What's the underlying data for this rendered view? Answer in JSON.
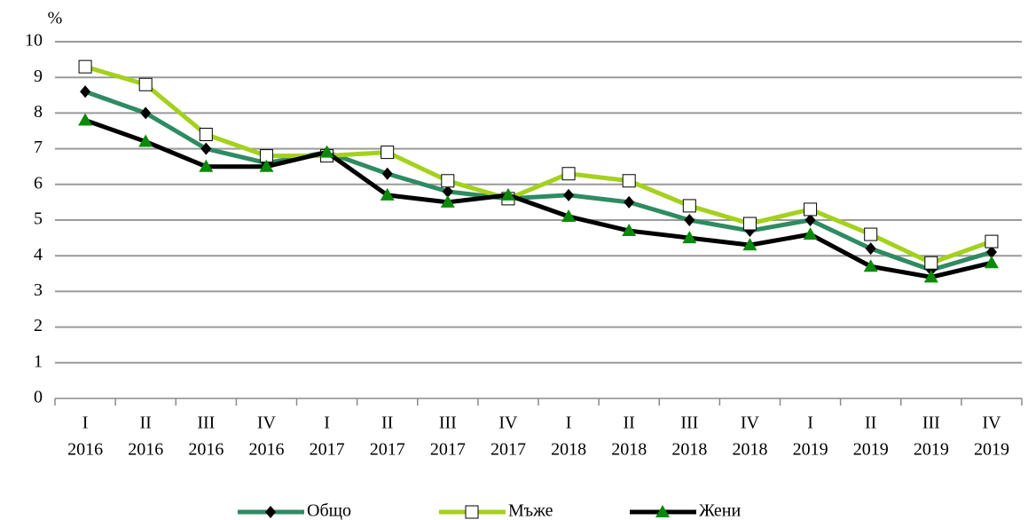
{
  "chart_data": {
    "type": "line",
    "y_label": "%",
    "categories": [
      [
        "I",
        "2016"
      ],
      [
        "II",
        "2016"
      ],
      [
        "III",
        "2016"
      ],
      [
        "IV",
        "2016"
      ],
      [
        "I",
        "2017"
      ],
      [
        "II",
        "2017"
      ],
      [
        "III",
        "2017"
      ],
      [
        "IV",
        "2017"
      ],
      [
        "I",
        "2018"
      ],
      [
        "II",
        "2018"
      ],
      [
        "III",
        "2018"
      ],
      [
        "IV",
        "2018"
      ],
      [
        "I",
        "2019"
      ],
      [
        "II",
        "2019"
      ],
      [
        "III",
        "2019"
      ],
      [
        "IV",
        "2019"
      ]
    ],
    "series": [
      {
        "name": "Общо",
        "color": "#2e8b62",
        "marker": "diamond",
        "marker_color": "#000000",
        "values": [
          8.6,
          8.0,
          7.0,
          6.6,
          6.9,
          6.3,
          5.8,
          5.6,
          5.7,
          5.5,
          5.0,
          4.7,
          5.0,
          4.2,
          3.6,
          4.1
        ]
      },
      {
        "name": "Мъже",
        "color": "#a4d11c",
        "marker": "square",
        "marker_color": "#ffffff",
        "values": [
          9.3,
          8.8,
          7.4,
          6.8,
          6.8,
          6.9,
          6.1,
          5.6,
          6.3,
          6.1,
          5.4,
          4.9,
          5.3,
          4.6,
          3.8,
          4.4
        ]
      },
      {
        "name": "Жени",
        "color": "#000000",
        "marker": "triangle",
        "marker_color": "#0a8a0a",
        "values": [
          7.8,
          7.2,
          6.5,
          6.5,
          6.9,
          5.7,
          5.5,
          5.7,
          5.1,
          4.7,
          4.5,
          4.3,
          4.6,
          3.7,
          3.4,
          3.8
        ]
      }
    ],
    "ylim": [
      0,
      10
    ],
    "yticks": [
      0,
      1,
      2,
      3,
      4,
      5,
      6,
      7,
      8,
      9,
      10
    ],
    "grid": true,
    "legend": "bottom"
  }
}
